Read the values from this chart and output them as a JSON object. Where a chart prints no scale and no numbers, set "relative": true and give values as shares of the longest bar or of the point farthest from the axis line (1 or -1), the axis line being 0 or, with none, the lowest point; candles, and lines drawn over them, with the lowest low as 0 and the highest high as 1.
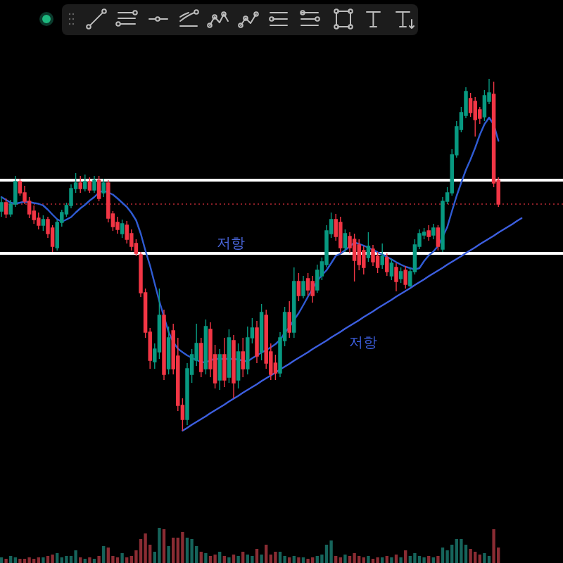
{
  "chart_data": [
    {
      "type": "candlestick",
      "relative": true,
      "categories": [
        null,
        null,
        null,
        null,
        null,
        null,
        null,
        null,
        null,
        null,
        null,
        null,
        null,
        null,
        null,
        null,
        null,
        null,
        null,
        null,
        null,
        null,
        null,
        null,
        null,
        null,
        null,
        null,
        null,
        null,
        null,
        null,
        null,
        null,
        null,
        null,
        null,
        null,
        null,
        null,
        null,
        null,
        null,
        null,
        null,
        null,
        null,
        null,
        null,
        null,
        null,
        null,
        null,
        null,
        null,
        null,
        null,
        null,
        null,
        null,
        null,
        null,
        null,
        null,
        null,
        null,
        null,
        null,
        null,
        null,
        null,
        null,
        null,
        null,
        null,
        null,
        null,
        null,
        null,
        null,
        null,
        null,
        null,
        null,
        null,
        null,
        null,
        null,
        null,
        null,
        null,
        null,
        null,
        null,
        null,
        null,
        null,
        null,
        null,
        null,
        null,
        null,
        null,
        null,
        null,
        null,
        null,
        null,
        null,
        null,
        null,
        null,
        null
      ],
      "ohlc": [
        [
          0.624,
          0.664,
          0.608,
          0.648
        ],
        [
          0.648,
          0.66,
          0.604,
          0.616
        ],
        [
          0.616,
          0.656,
          0.608,
          0.644
        ],
        [
          0.644,
          0.724,
          0.636,
          0.708
        ],
        [
          0.708,
          0.716,
          0.668,
          0.676
        ],
        [
          0.676,
          0.696,
          0.644,
          0.652
        ],
        [
          0.652,
          0.664,
          0.604,
          0.616
        ],
        [
          0.624,
          0.64,
          0.588,
          0.6
        ],
        [
          0.604,
          0.62,
          0.572,
          0.584
        ],
        [
          0.584,
          0.612,
          0.568,
          0.6
        ],
        [
          0.6,
          0.608,
          0.548,
          0.56
        ],
        [
          0.576,
          0.584,
          0.508,
          0.524
        ],
        [
          0.52,
          0.6,
          0.512,
          0.592
        ],
        [
          0.592,
          0.628,
          0.58,
          0.62
        ],
        [
          0.616,
          0.648,
          0.608,
          0.64
        ],
        [
          0.64,
          0.7,
          0.632,
          0.688
        ],
        [
          0.688,
          0.732,
          0.676,
          0.704
        ],
        [
          0.704,
          0.724,
          0.676,
          0.688
        ],
        [
          0.688,
          0.728,
          0.68,
          0.708
        ],
        [
          0.708,
          0.72,
          0.676,
          0.684
        ],
        [
          0.684,
          0.724,
          0.676,
          0.712
        ],
        [
          0.712,
          0.724,
          0.652,
          0.66
        ],
        [
          0.676,
          0.716,
          0.664,
          0.704
        ],
        [
          0.704,
          0.712,
          0.592,
          0.604
        ],
        [
          0.616,
          0.624,
          0.568,
          0.58
        ],
        [
          0.592,
          0.608,
          0.56,
          0.572
        ],
        [
          0.56,
          0.6,
          0.548,
          0.588
        ],
        [
          0.584,
          0.596,
          0.532,
          0.544
        ],
        [
          0.56,
          0.572,
          0.512,
          0.524
        ],
        [
          0.532,
          0.544,
          0.496,
          0.504
        ],
        [
          0.5,
          0.508,
          0.38,
          0.392
        ],
        [
          0.392,
          0.404,
          0.264,
          0.28
        ],
        [
          0.28,
          0.292,
          0.176,
          0.2
        ],
        [
          0.196,
          0.248,
          0.176,
          0.232
        ],
        [
          0.224,
          0.404,
          0.204,
          0.328
        ],
        [
          0.328,
          0.344,
          0.144,
          0.16
        ],
        [
          0.176,
          0.296,
          0.16,
          0.264
        ],
        [
          0.284,
          0.304,
          0.16,
          0.176
        ],
        [
          0.212,
          0.264,
          0.056,
          0.072
        ],
        [
          0.072,
          0.092,
          0,
          0.032
        ],
        [
          0.032,
          0.192,
          0.016,
          0.176
        ],
        [
          0.16,
          0.232,
          0.136,
          0.216
        ],
        [
          0.2,
          0.304,
          0.184,
          0.248
        ],
        [
          0.248,
          0.264,
          0.152,
          0.168
        ],
        [
          0.176,
          0.316,
          0.16,
          0.296
        ],
        [
          0.288,
          0.308,
          0.152,
          0.176
        ],
        [
          0.216,
          0.244,
          0.12,
          0.136
        ],
        [
          0.144,
          0.232,
          0.116,
          0.216
        ],
        [
          0.216,
          0.264,
          0.124,
          0.144
        ],
        [
          0.152,
          0.288,
          0.136,
          0.264
        ],
        [
          0.256,
          0.272,
          0.092,
          0.136
        ],
        [
          0.144,
          0.248,
          0.12,
          0.224
        ],
        [
          0.224,
          0.264,
          0.152,
          0.176
        ],
        [
          0.176,
          0.296,
          0.16,
          0.264
        ],
        [
          0.264,
          0.32,
          0.248,
          0.292
        ],
        [
          0.292,
          0.312,
          0.192,
          0.212
        ],
        [
          0.224,
          0.36,
          0.2,
          0.336
        ],
        [
          0.328,
          0.344,
          0.176,
          0.192
        ],
        [
          0.224,
          0.248,
          0.144,
          0.16
        ],
        [
          0.192,
          0.216,
          0.144,
          0.164
        ],
        [
          0.164,
          0.28,
          0.152,
          0.264
        ],
        [
          0.256,
          0.352,
          0.24,
          0.336
        ],
        [
          0.336,
          0.368,
          0.264,
          0.28
        ],
        [
          0.28,
          0.464,
          0.264,
          0.424
        ],
        [
          0.424,
          0.448,
          0.368,
          0.384
        ],
        [
          0.384,
          0.44,
          0.376,
          0.424
        ],
        [
          0.432,
          0.448,
          0.384,
          0.4
        ],
        [
          0.424,
          0.44,
          0.364,
          0.384
        ],
        [
          0.4,
          0.472,
          0.392,
          0.456
        ],
        [
          0.44,
          0.492,
          0.428,
          0.48
        ],
        [
          0.472,
          0.584,
          0.464,
          0.568
        ],
        [
          0.56,
          0.62,
          0.548,
          0.6
        ],
        [
          0.6,
          0.616,
          0.54,
          0.552
        ],
        [
          0.592,
          0.608,
          0.504,
          0.52
        ],
        [
          0.52,
          0.572,
          0.508,
          0.56
        ],
        [
          0.552,
          0.564,
          0.504,
          0.52
        ],
        [
          0.544,
          0.56,
          0.424,
          0.484
        ],
        [
          0.528,
          0.544,
          0.456,
          0.472
        ],
        [
          0.512,
          0.524,
          0.444,
          0.464
        ],
        [
          0.492,
          0.564,
          0.48,
          0.524
        ],
        [
          0.516,
          0.528,
          0.468,
          0.48
        ],
        [
          0.496,
          0.508,
          0.448,
          0.464
        ],
        [
          0.472,
          0.532,
          0.46,
          0.496
        ],
        [
          0.492,
          0.504,
          0.44,
          0.452
        ],
        [
          0.44,
          0.488,
          0.428,
          0.476
        ],
        [
          0.464,
          0.476,
          0.396,
          0.424
        ],
        [
          0.432,
          0.464,
          0.42,
          0.452
        ],
        [
          0.456,
          0.468,
          0.404,
          0.416
        ],
        [
          0.412,
          0.464,
          0.408,
          0.452
        ],
        [
          0.452,
          0.544,
          0.444,
          0.528
        ],
        [
          0.524,
          0.572,
          0.516,
          0.56
        ],
        [
          0.556,
          0.576,
          0.544,
          0.564
        ],
        [
          0.568,
          0.584,
          0.54,
          0.552
        ],
        [
          0.556,
          0.588,
          0.544,
          0.576
        ],
        [
          0.576,
          0.584,
          0.512,
          0.524
        ],
        [
          0.516,
          0.664,
          0.508,
          0.652
        ],
        [
          0.652,
          0.692,
          0.644,
          0.676
        ],
        [
          0.676,
          0.8,
          0.668,
          0.784
        ],
        [
          0.784,
          0.88,
          0.776,
          0.864
        ],
        [
          0.856,
          0.92,
          0.848,
          0.904
        ],
        [
          0.896,
          0.976,
          0.888,
          0.964
        ],
        [
          0.944,
          0.96,
          0.892,
          0.904
        ],
        [
          0.936,
          0.948,
          0.836,
          0.884
        ],
        [
          0.912,
          0.92,
          0.872,
          0.888
        ],
        [
          0.892,
          0.968,
          0.88,
          0.952
        ],
        [
          0.936,
          1,
          0.928,
          0.96
        ],
        [
          0.956,
          0.992,
          0.692,
          0.704
        ],
        [
          0.712,
          0.72,
          0.636,
          0.644
        ],
        null,
        null,
        null,
        null,
        null
      ],
      "colors": [
        "#089981",
        "#f23645",
        "#089981",
        "#089981",
        "#f23645",
        "#f23645",
        "#f23645",
        "#f23645",
        "#f23645",
        "#089981",
        "#f23645",
        "#f23645",
        "#089981",
        "#089981",
        "#089981",
        "#089981",
        "#089981",
        "#f23645",
        "#089981",
        "#f23645",
        "#089981",
        "#f23645",
        "#089981",
        "#f23645",
        "#f23645",
        "#f23645",
        "#089981",
        "#f23645",
        "#f23645",
        "#f23645",
        "#f23645",
        "#f23645",
        "#f23645",
        "#089981",
        "#089981",
        "#f23645",
        "#089981",
        "#f23645",
        "#f23645",
        "#f23645",
        "#089981",
        "#089981",
        "#089981",
        "#f23645",
        "#089981",
        "#f23645",
        "#f23645",
        "#089981",
        "#f23645",
        "#089981",
        "#f23645",
        "#089981",
        "#f23645",
        "#089981",
        "#089981",
        "#f23645",
        "#089981",
        "#f23645",
        "#f23645",
        "#f23645",
        "#089981",
        "#089981",
        "#f23645",
        "#089981",
        "#f23645",
        "#089981",
        "#f23645",
        "#f23645",
        "#089981",
        "#089981",
        "#089981",
        "#089981",
        "#f23645",
        "#f23645",
        "#089981",
        "#f23645",
        "#f23645",
        "#f23645",
        "#f23645",
        "#089981",
        "#f23645",
        "#f23645",
        "#089981",
        "#f23645",
        "#089981",
        "#f23645",
        "#089981",
        "#f23645",
        "#089981",
        "#089981",
        "#089981",
        "#089981",
        "#f23645",
        "#089981",
        "#f23645",
        "#089981",
        "#089981",
        "#089981",
        "#089981",
        "#089981",
        "#089981",
        "#f23645",
        "#f23645",
        "#f23645",
        "#089981",
        "#089981",
        "#f23645",
        "#f23645",
        null,
        null,
        null,
        null,
        null
      ],
      "series": [
        {
          "type": "line",
          "color": "#2f5bd3",
          "values": [
            0.664,
            0.656,
            0.648,
            0.645,
            0.648,
            0.651,
            0.65,
            0.647,
            0.645,
            0.64,
            0.628,
            0.614,
            0.601,
            0.594,
            0.6,
            0.607,
            0.62,
            0.632,
            0.642,
            0.654,
            0.664,
            0.677,
            0.682,
            0.677,
            0.671,
            0.66,
            0.648,
            0.636,
            0.619,
            0.598,
            0.56,
            0.512,
            0.469,
            0.418,
            0.368,
            0.324,
            0.28,
            0.252,
            0.233,
            0.223,
            0.214,
            0.207,
            0.201,
            0.195,
            0.194,
            0.2,
            0.204,
            0.204,
            0.204,
            0.204,
            0.204,
            0.202,
            0.199,
            0.197,
            0.206,
            0.214,
            0.222,
            0.229,
            0.237,
            0.246,
            0.258,
            0.278,
            0.294,
            0.315,
            0.334,
            0.357,
            0.381,
            0.403,
            0.426,
            0.442,
            0.456,
            0.476,
            0.497,
            0.503,
            0.513,
            0.524,
            0.535,
            0.531,
            0.526,
            0.52,
            0.514,
            0.507,
            0.501,
            0.494,
            0.487,
            0.479,
            0.472,
            0.466,
            0.462,
            0.458,
            0.462,
            0.482,
            0.498,
            0.509,
            0.525,
            0.551,
            0.579,
            0.624,
            0.667,
            0.705,
            0.741,
            0.771,
            0.804,
            0.841,
            0.871,
            0.89,
            0.87,
            0.824,
            null,
            null,
            null,
            null,
            null
          ]
        },
        {
          "type": "line",
          "name": "저항",
          "color": "#3d5fe0",
          "values": [
            null,
            null,
            null,
            null,
            null,
            null,
            null,
            null,
            null,
            null,
            null,
            null,
            null,
            null,
            null,
            null,
            null,
            null,
            null,
            null,
            null,
            null,
            null,
            null,
            null,
            null,
            null,
            null,
            null,
            null,
            null,
            null,
            null,
            null,
            null,
            null,
            null,
            null,
            null,
            0,
            0.008,
            0.017,
            0.025,
            0.033,
            0.041,
            0.05,
            0.058,
            0.066,
            0.074,
            0.083,
            0.091,
            0.099,
            0.108,
            0.116,
            0.124,
            0.132,
            0.141,
            0.149,
            0.157,
            0.165,
            0.174,
            0.182,
            0.19,
            0.199,
            0.207,
            0.215,
            0.223,
            0.232,
            0.24,
            0.248,
            0.256,
            0.265,
            0.273,
            0.281,
            0.29,
            0.298,
            0.306,
            0.314,
            0.323,
            0.331,
            0.339,
            0.348,
            0.356,
            0.364,
            0.372,
            0.381,
            0.389,
            0.397,
            0.405,
            0.414,
            0.422,
            0.43,
            0.439,
            0.447,
            0.455,
            0.463,
            0.472,
            0.48,
            0.488,
            0.496,
            0.505,
            0.513,
            0.521,
            0.53,
            0.538,
            0.546,
            0.554,
            0.563,
            0.571,
            0.579,
            0.587,
            0.596,
            0.604
          ]
        }
      ],
      "ref_lines": [
        {
          "axis": "y",
          "value": 0.712,
          "color": "#ffffff"
        },
        {
          "axis": "y",
          "value": 0.504,
          "color": "#ffffff",
          "label": "저항"
        },
        {
          "axis": "y",
          "value": 0.644,
          "color": "#8b1f27",
          "line_style": "dotted"
        }
      ]
    },
    {
      "type": "bar",
      "relative": true,
      "categories": [
        null,
        null,
        null,
        null,
        null,
        null,
        null,
        null,
        null,
        null,
        null,
        null,
        null,
        null,
        null,
        null,
        null,
        null,
        null,
        null,
        null,
        null,
        null,
        null,
        null,
        null,
        null,
        null,
        null,
        null,
        null,
        null,
        null,
        null,
        null,
        null,
        null,
        null,
        null,
        null,
        null,
        null,
        null,
        null,
        null,
        null,
        null,
        null,
        null,
        null,
        null,
        null,
        null,
        null,
        null,
        null,
        null,
        null,
        null,
        null,
        null,
        null,
        null,
        null,
        null,
        null,
        null,
        null,
        null,
        null,
        null,
        null,
        null,
        null,
        null,
        null,
        null,
        null,
        null,
        null,
        null,
        null,
        null,
        null,
        null,
        null,
        null,
        null,
        null,
        null,
        null,
        null,
        null,
        null,
        null,
        null,
        null,
        null,
        null,
        null,
        null,
        null,
        null,
        null,
        null,
        null,
        null,
        null,
        null,
        null,
        null,
        null,
        null
      ],
      "values": [
        0.16,
        0.12,
        0.2,
        0.16,
        0.12,
        0.12,
        0.16,
        0.12,
        0.16,
        0.16,
        0.2,
        0.24,
        0.28,
        0.16,
        0.2,
        0.2,
        0.36,
        0.16,
        0.12,
        0.16,
        0.12,
        0.2,
        0.48,
        0.44,
        0.2,
        0.16,
        0.28,
        0.16,
        0.2,
        0.36,
        0.68,
        0.84,
        0.52,
        0.32,
        1,
        0.96,
        0.48,
        0.72,
        0.72,
        0.88,
        0.72,
        0.68,
        0.48,
        0.32,
        0.28,
        0.2,
        0.24,
        0.32,
        0.2,
        0.16,
        0.24,
        0.2,
        0.32,
        0.24,
        0.2,
        0.4,
        0.24,
        0.52,
        0.24,
        0.32,
        0.32,
        0.2,
        0.16,
        0.2,
        0.16,
        0.16,
        0.12,
        0.16,
        0.2,
        0.24,
        0.52,
        0.64,
        0.2,
        0.16,
        0.24,
        0.2,
        0.28,
        0.2,
        0.16,
        0.2,
        0.12,
        0.16,
        0.16,
        0.2,
        0.16,
        0.24,
        0.16,
        0.36,
        0.2,
        0.28,
        0.2,
        0.16,
        0.2,
        0.16,
        0.2,
        0.44,
        0.36,
        0.52,
        0.68,
        0.68,
        0.52,
        0.4,
        0.32,
        0.24,
        0.28,
        0.2,
        0.96,
        0.44,
        null,
        null,
        null,
        null,
        null
      ],
      "colors": [
        "#16645b",
        "#8a2c33",
        "#16645b",
        "#16645b",
        "#8a2c33",
        "#8a2c33",
        "#8a2c33",
        "#8a2c33",
        "#8a2c33",
        "#16645b",
        "#8a2c33",
        "#8a2c33",
        "#16645b",
        "#16645b",
        "#16645b",
        "#16645b",
        "#16645b",
        "#8a2c33",
        "#16645b",
        "#8a2c33",
        "#16645b",
        "#8a2c33",
        "#16645b",
        "#8a2c33",
        "#8a2c33",
        "#8a2c33",
        "#16645b",
        "#8a2c33",
        "#8a2c33",
        "#8a2c33",
        "#8a2c33",
        "#8a2c33",
        "#8a2c33",
        "#16645b",
        "#16645b",
        "#8a2c33",
        "#16645b",
        "#8a2c33",
        "#8a2c33",
        "#8a2c33",
        "#16645b",
        "#16645b",
        "#16645b",
        "#8a2c33",
        "#16645b",
        "#8a2c33",
        "#8a2c33",
        "#16645b",
        "#8a2c33",
        "#16645b",
        "#8a2c33",
        "#16645b",
        "#8a2c33",
        "#16645b",
        "#16645b",
        "#8a2c33",
        "#16645b",
        "#8a2c33",
        "#8a2c33",
        "#8a2c33",
        "#16645b",
        "#16645b",
        "#8a2c33",
        "#16645b",
        "#8a2c33",
        "#16645b",
        "#8a2c33",
        "#8a2c33",
        "#16645b",
        "#16645b",
        "#16645b",
        "#16645b",
        "#8a2c33",
        "#8a2c33",
        "#16645b",
        "#8a2c33",
        "#8a2c33",
        "#8a2c33",
        "#8a2c33",
        "#16645b",
        "#8a2c33",
        "#8a2c33",
        "#16645b",
        "#8a2c33",
        "#16645b",
        "#8a2c33",
        "#16645b",
        "#8a2c33",
        "#16645b",
        "#16645b",
        "#16645b",
        "#16645b",
        "#8a2c33",
        "#16645b",
        "#8a2c33",
        "#16645b",
        "#16645b",
        "#16645b",
        "#16645b",
        "#16645b",
        "#16645b",
        "#8a2c33",
        "#8a2c33",
        "#8a2c33",
        "#16645b",
        "#16645b",
        "#8a2c33",
        "#8a2c33",
        null,
        null,
        null,
        null,
        null
      ]
    }
  ]
}
